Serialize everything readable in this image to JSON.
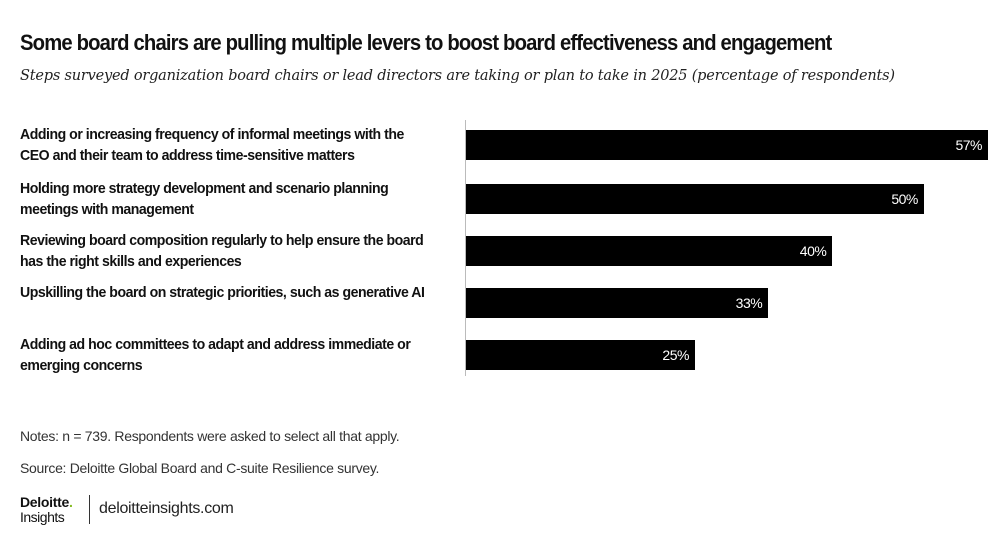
{
  "chart_data": {
    "type": "bar",
    "orientation": "horizontal",
    "title": "Some board chairs are pulling multiple levers to boost board effectiveness and engagement",
    "subtitle": "Steps surveyed organization board chairs or lead directors are taking or plan to take in 2025 (percentage of respondents)",
    "categories": [
      "Adding or increasing frequency of informal meetings with the CEO and their team to address time-sensitive matters",
      "Holding more strategy development and scenario planning meetings with management",
      "Reviewing board composition regularly to help ensure the board has the right skills and experiences",
      "Upskilling the board on strategic priorities, such as generative AI",
      "Adding ad hoc committees to adapt and address immediate or emerging concerns"
    ],
    "values": [
      57,
      50,
      40,
      33,
      25
    ],
    "data_labels": [
      "57%",
      "50%",
      "40%",
      "33%",
      "25%"
    ],
    "xlabel": "",
    "ylabel": "",
    "xlim": [
      0,
      57
    ],
    "grid": false,
    "bar_color": "#000000"
  },
  "notes": "Notes: n = 739. Respondents were asked to select all that apply.",
  "source": "Source: Deloitte Global Board and C-suite Resilience survey.",
  "footer": {
    "logo_top": "Deloitte",
    "logo_dot": ".",
    "logo_bottom": "Insights",
    "site": "deloitteinsights.com",
    "accent": "#86BC25"
  }
}
